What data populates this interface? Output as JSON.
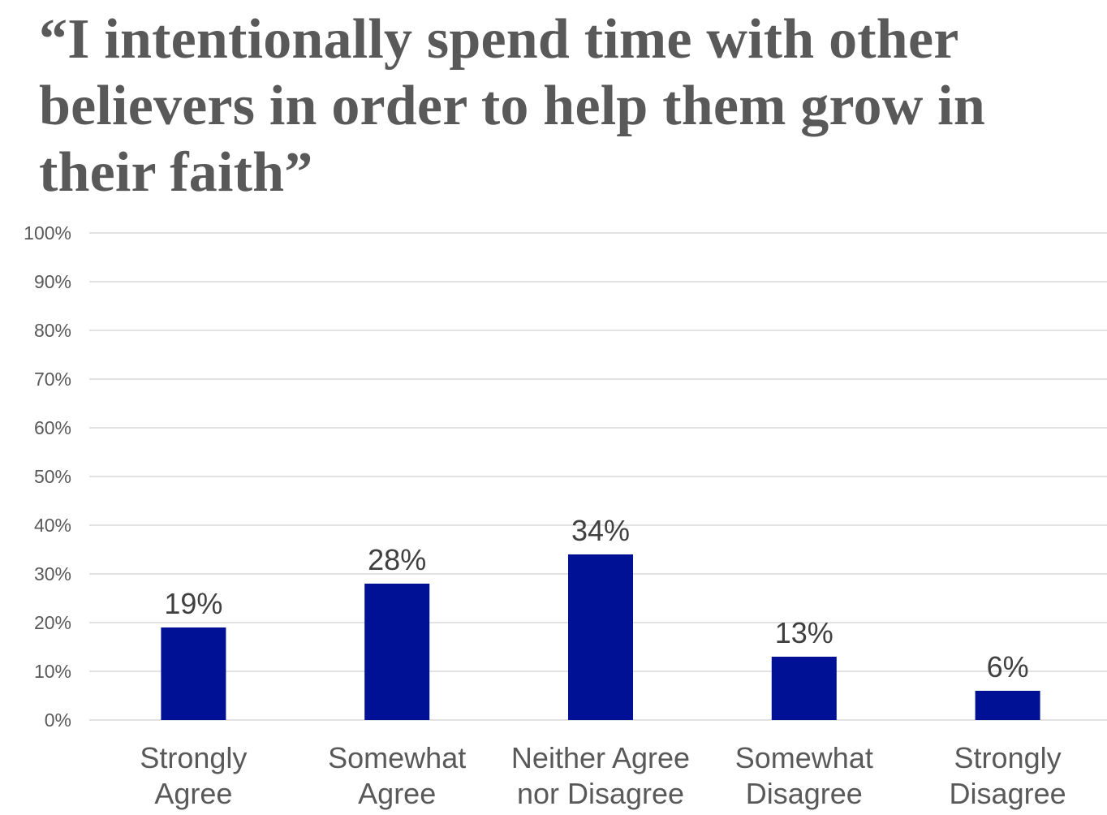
{
  "chart_data": {
    "type": "bar",
    "title": "“I intentionally spend time with other believers in order to help them grow in their faith”",
    "categories": [
      [
        "Strongly",
        "Agree"
      ],
      [
        "Somewhat",
        "Agree"
      ],
      [
        "Neither Agree",
        "nor Disagree"
      ],
      [
        "Somewhat",
        "Disagree"
      ],
      [
        "Strongly",
        "Disagree"
      ]
    ],
    "values": [
      19,
      28,
      34,
      13,
      6
    ],
    "data_labels": [
      "19%",
      "28%",
      "34%",
      "13%",
      "6%"
    ],
    "ylim": [
      0,
      100
    ],
    "yticks": [
      0,
      10,
      20,
      30,
      40,
      50,
      60,
      70,
      80,
      90,
      100
    ],
    "ytick_labels": [
      "0%",
      "10%",
      "20%",
      "30%",
      "40%",
      "50%",
      "60%",
      "70%",
      "80%",
      "90%",
      "100%"
    ],
    "grid": true,
    "legend": "none",
    "bar_color": "#001196",
    "grid_color": "#d9d9d9"
  }
}
